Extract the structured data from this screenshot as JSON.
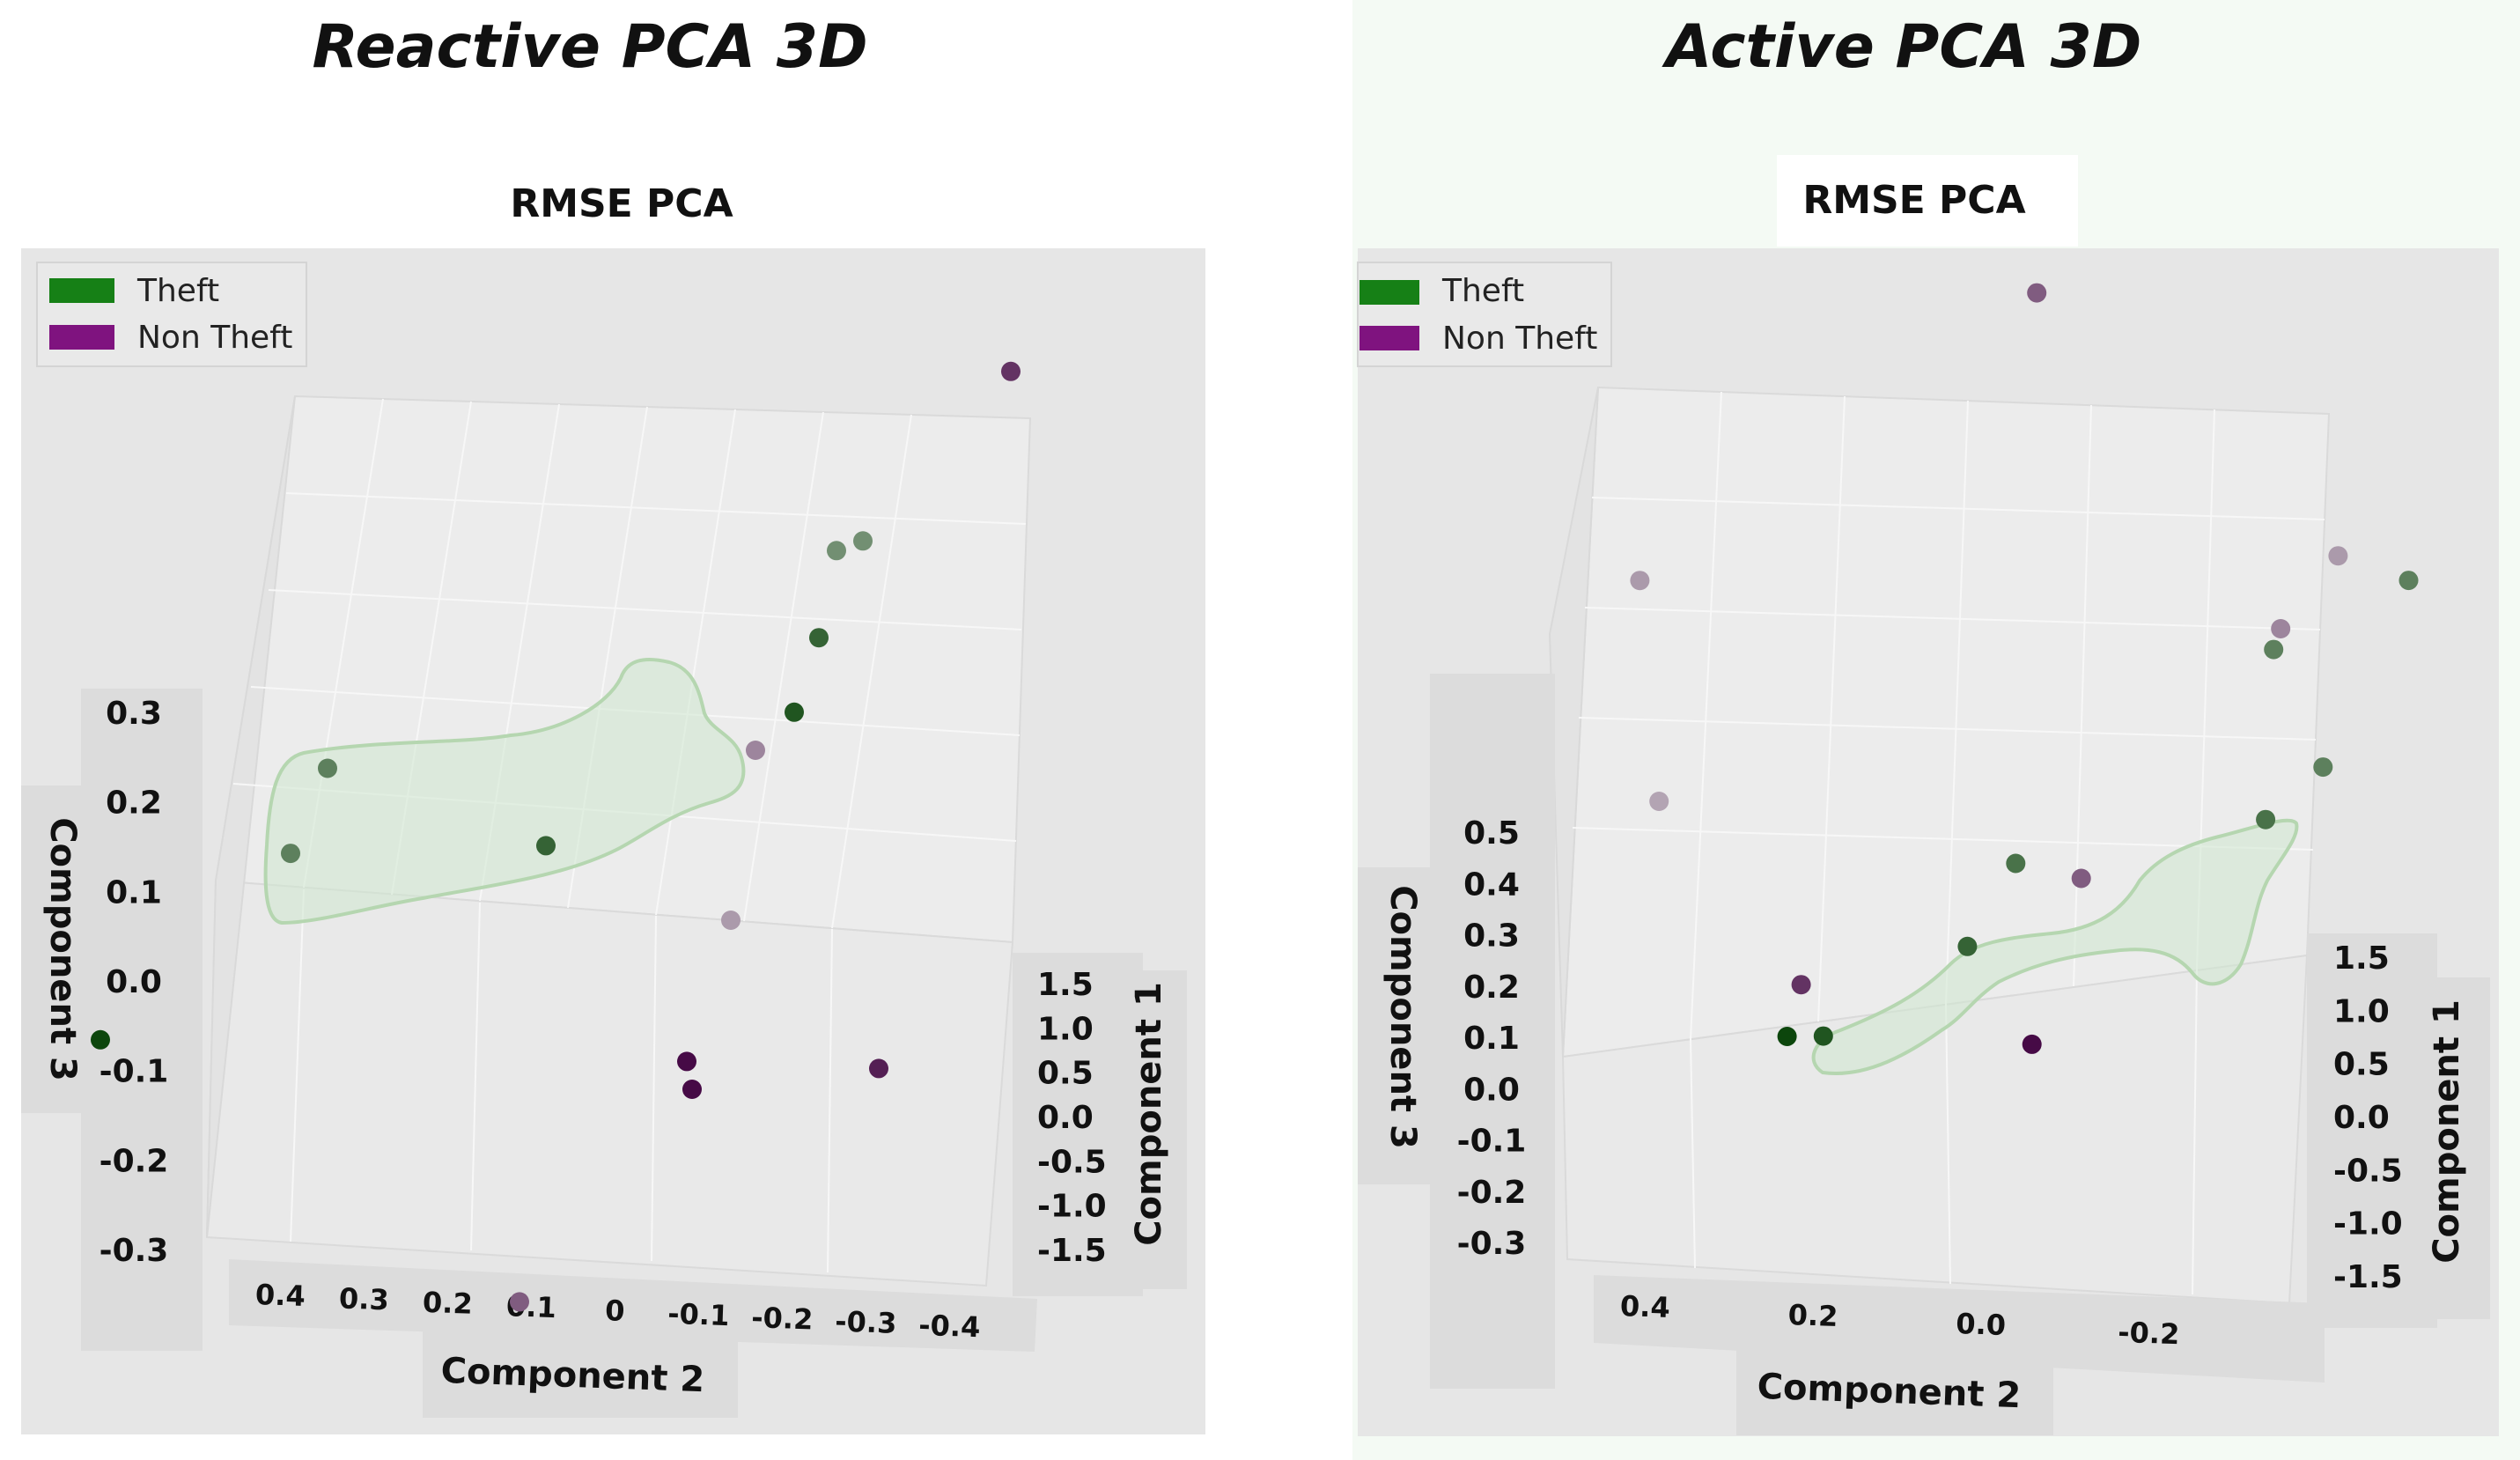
{
  "chart_data": [
    {
      "type": "scatter",
      "title": "Reactive PCA 3D",
      "subtitle": "RMSE PCA",
      "xlabel": "Component 2",
      "ylabel": "Component 1",
      "zlabel": "Component 3",
      "x_ticks": [
        "0.4",
        "0.3",
        "0.2",
        "0.1",
        "0",
        "-0.1",
        "-0.2",
        "-0.3",
        "-0.4"
      ],
      "y_ticks": [
        "1.5",
        "1.0",
        "0.5",
        "0.0",
        "-0.5",
        "-1.0",
        "-1.5"
      ],
      "z_ticks": [
        "0.3",
        "0.2",
        "0.1",
        "0.0",
        "-0.1",
        "-0.2",
        "-0.3"
      ],
      "legend": [
        {
          "label": "Theft",
          "color": "#168016"
        },
        {
          "label": "Non Theft",
          "color": "#7f137f"
        }
      ],
      "series": [
        {
          "name": "Theft",
          "points": [
            {
              "x": 0.36,
              "y": 0.3,
              "z": 0.23,
              "shade": 0.6
            },
            {
              "x": 0.36,
              "y": 0.0,
              "z": 0.17,
              "shade": 0.6
            },
            {
              "x": 0.45,
              "y": -0.9,
              "z": 0.07,
              "shade": 1.0
            },
            {
              "x": 0.07,
              "y": 0.0,
              "z": 0.17,
              "shade": 0.8
            },
            {
              "x": -0.05,
              "y": 1.5,
              "z": 0.32,
              "shade": 0.5
            },
            {
              "x": -0.08,
              "y": 1.5,
              "z": 0.33,
              "shade": 0.5
            },
            {
              "x": -0.1,
              "y": 1.0,
              "z": 0.28,
              "shade": 0.8
            },
            {
              "x": -0.1,
              "y": 0.8,
              "z": 0.22,
              "shade": 0.9
            }
          ]
        },
        {
          "name": "Non Theft",
          "points": [
            {
              "x": -0.29,
              "y": 1.2,
              "z": 0.55,
              "shade": 0.8
            },
            {
              "x": -0.07,
              "y": 0.7,
              "z": 0.19,
              "shade": 0.4
            },
            {
              "x": -0.14,
              "y": 0.0,
              "z": 0.08,
              "shade": 0.3
            },
            {
              "x": -0.42,
              "y": -0.8,
              "z": 0.0,
              "shade": 0.9
            },
            {
              "x": -0.16,
              "y": -0.5,
              "z": -0.02,
              "shade": 1.0
            },
            {
              "x": -0.18,
              "y": -0.6,
              "z": -0.04,
              "shade": 1.0
            },
            {
              "x": -0.11,
              "y": -1.5,
              "z": -0.17,
              "shade": 0.6
            }
          ]
        }
      ]
    },
    {
      "type": "scatter",
      "title": "Active PCA 3D",
      "subtitle": "RMSE PCA",
      "xlabel": "Component 2",
      "ylabel": "Component 1",
      "zlabel": "Component 3",
      "x_ticks": [
        "0.4",
        "0.2",
        "0.0",
        "-0.2"
      ],
      "y_ticks": [
        "1.5",
        "1.0",
        "0.5",
        "0.0",
        "-0.5",
        "-1.0",
        "-1.5"
      ],
      "z_ticks": [
        "0.5",
        "0.4",
        "0.3",
        "0.2",
        "0.1",
        "0.0",
        "-0.1",
        "-0.2",
        "-0.3"
      ],
      "legend": [
        {
          "label": "Theft",
          "color": "#168016"
        },
        {
          "label": "Non Theft",
          "color": "#7f137f"
        }
      ],
      "series": [
        {
          "name": "Theft",
          "points": [
            {
              "x": 0.18,
              "y": -0.5,
              "z": 0.06,
              "shade": 1.0
            },
            {
              "x": 0.14,
              "y": -0.5,
              "z": 0.06,
              "shade": 0.9
            },
            {
              "x": 0.02,
              "y": 0.0,
              "z": 0.13,
              "shade": 0.8
            },
            {
              "x": -0.01,
              "y": 0.3,
              "z": 0.23,
              "shade": 0.7
            },
            {
              "x": -0.24,
              "y": 1.0,
              "z": 0.5,
              "shade": 0.6
            },
            {
              "x": -0.27,
              "y": 0.5,
              "z": 0.27,
              "shade": 0.7
            },
            {
              "x": -0.31,
              "y": 0.8,
              "z": 0.31,
              "shade": 0.6
            },
            {
              "x": -0.35,
              "y": 1.5,
              "z": 0.53,
              "shade": 0.6
            }
          ]
        },
        {
          "name": "Non Theft",
          "points": [
            {
              "x": 0.06,
              "y": 1.5,
              "z": 1.1,
              "shade": 0.6
            },
            {
              "x": 0.42,
              "y": 0.5,
              "z": 0.75,
              "shade": 0.3
            },
            {
              "x": 0.36,
              "y": 0.0,
              "z": 0.42,
              "shade": 0.25
            },
            {
              "x": 0.18,
              "y": -0.3,
              "z": 0.12,
              "shade": 0.8
            },
            {
              "x": -0.09,
              "y": 0.2,
              "z": 0.22,
              "shade": 0.6
            },
            {
              "x": -0.09,
              "y": -0.5,
              "z": 0.04,
              "shade": 1.0
            },
            {
              "x": -0.24,
              "y": 1.1,
              "z": 0.52,
              "shade": 0.4
            },
            {
              "x": -0.28,
              "y": 1.4,
              "z": 0.6,
              "shade": 0.3
            }
          ]
        }
      ]
    }
  ]
}
